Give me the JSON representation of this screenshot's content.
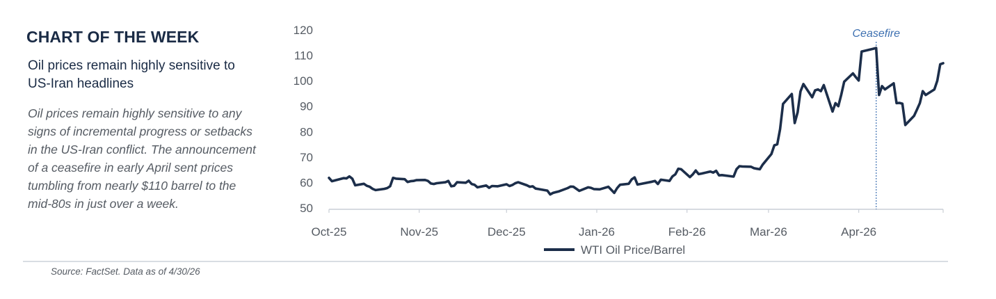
{
  "header": {
    "title": "CHART OF THE WEEK",
    "subtitle": "Oil prices remain highly sensitive to US-Iran headlines"
  },
  "body_text": "Oil prices remain highly sensitive to any signs of incremental progress or setbacks in the US-Iran conflict. The announcement of a ceasefire in early April sent prices tumbling from nearly $110 barrel to the mid-80s in just over a week.",
  "footer": {
    "source": "Source: FactSet. Data as of 4/30/26"
  },
  "colors": {
    "line": "#1c2e4a",
    "heading": "#1a2b45",
    "annotation": "#3c6fb0"
  },
  "chart_data": {
    "type": "line",
    "title": "",
    "xlabel": "",
    "ylabel": "",
    "x_tick_labels": [
      "Oct-25",
      "Nov-25",
      "Dec-25",
      "Jan-26",
      "Feb-26",
      "Mar-26",
      "Apr-26"
    ],
    "x_tick_dates": [
      "2025-10-01",
      "2025-11-01",
      "2025-12-01",
      "2026-01-01",
      "2026-02-01",
      "2026-03-01",
      "2026-04-01"
    ],
    "x_range": [
      "2025-10-01",
      "2026-04-30"
    ],
    "ylim": [
      50,
      120
    ],
    "y_ticks": [
      50,
      60,
      70,
      80,
      90,
      100,
      110,
      120
    ],
    "grid": false,
    "legend_position": "bottom",
    "annotations": [
      {
        "text": "Ceasefire",
        "x": "2026-04-07",
        "style": "dashed vertical line"
      }
    ],
    "series": [
      {
        "name": "WTI Oil Price/Barrel",
        "points": [
          [
            "2025-10-01",
            61.8
          ],
          [
            "2025-10-02",
            60.5
          ],
          [
            "2025-10-03",
            60.8
          ],
          [
            "2025-10-06",
            61.7
          ],
          [
            "2025-10-07",
            61.6
          ],
          [
            "2025-10-08",
            62.4
          ],
          [
            "2025-10-09",
            61.5
          ],
          [
            "2025-10-10",
            58.9
          ],
          [
            "2025-10-13",
            59.5
          ],
          [
            "2025-10-14",
            58.7
          ],
          [
            "2025-10-15",
            58.3
          ],
          [
            "2025-10-16",
            57.5
          ],
          [
            "2025-10-17",
            57.0
          ],
          [
            "2025-10-20",
            57.5
          ],
          [
            "2025-10-21",
            57.8
          ],
          [
            "2025-10-22",
            58.5
          ],
          [
            "2025-10-23",
            61.8
          ],
          [
            "2025-10-24",
            61.5
          ],
          [
            "2025-10-27",
            61.3
          ],
          [
            "2025-10-28",
            60.2
          ],
          [
            "2025-10-29",
            60.5
          ],
          [
            "2025-10-30",
            60.6
          ],
          [
            "2025-10-31",
            60.9
          ],
          [
            "2025-11-03",
            61.0
          ],
          [
            "2025-11-04",
            60.6
          ],
          [
            "2025-11-05",
            59.6
          ],
          [
            "2025-11-06",
            59.4
          ],
          [
            "2025-11-07",
            59.7
          ],
          [
            "2025-11-10",
            60.1
          ],
          [
            "2025-11-11",
            60.6
          ],
          [
            "2025-11-12",
            58.5
          ],
          [
            "2025-11-13",
            58.7
          ],
          [
            "2025-11-14",
            60.1
          ],
          [
            "2025-11-17",
            59.9
          ],
          [
            "2025-11-18",
            60.7
          ],
          [
            "2025-11-19",
            59.4
          ],
          [
            "2025-11-20",
            59.1
          ],
          [
            "2025-11-21",
            58.1
          ],
          [
            "2025-11-24",
            58.8
          ],
          [
            "2025-11-25",
            57.9
          ],
          [
            "2025-11-26",
            58.6
          ],
          [
            "2025-11-28",
            58.5
          ],
          [
            "2025-12-01",
            59.3
          ],
          [
            "2025-12-02",
            58.6
          ],
          [
            "2025-12-03",
            59.0
          ],
          [
            "2025-12-04",
            59.7
          ],
          [
            "2025-12-05",
            60.1
          ],
          [
            "2025-12-08",
            58.9
          ],
          [
            "2025-12-09",
            58.3
          ],
          [
            "2025-12-10",
            58.5
          ],
          [
            "2025-12-11",
            57.6
          ],
          [
            "2025-12-12",
            57.4
          ],
          [
            "2025-12-15",
            56.8
          ],
          [
            "2025-12-16",
            55.3
          ],
          [
            "2025-12-17",
            55.9
          ],
          [
            "2025-12-18",
            56.2
          ],
          [
            "2025-12-19",
            56.5
          ],
          [
            "2025-12-22",
            57.8
          ],
          [
            "2025-12-23",
            58.4
          ],
          [
            "2025-12-24",
            58.3
          ],
          [
            "2025-12-26",
            56.7
          ],
          [
            "2025-12-29",
            58.1
          ],
          [
            "2025-12-30",
            57.9
          ],
          [
            "2025-12-31",
            57.4
          ],
          [
            "2026-01-02",
            57.3
          ],
          [
            "2026-01-05",
            58.3
          ],
          [
            "2026-01-06",
            57.1
          ],
          [
            "2026-01-07",
            55.9
          ],
          [
            "2026-01-08",
            57.8
          ],
          [
            "2026-01-09",
            59.1
          ],
          [
            "2026-01-12",
            59.5
          ],
          [
            "2026-01-13",
            61.2
          ],
          [
            "2026-01-14",
            62.0
          ],
          [
            "2026-01-15",
            59.2
          ],
          [
            "2026-01-16",
            59.4
          ],
          [
            "2026-01-20",
            60.3
          ],
          [
            "2026-01-21",
            60.6
          ],
          [
            "2026-01-22",
            59.4
          ],
          [
            "2026-01-23",
            61.1
          ],
          [
            "2026-01-26",
            60.6
          ],
          [
            "2026-01-27",
            62.4
          ],
          [
            "2026-01-28",
            63.2
          ],
          [
            "2026-01-29",
            65.4
          ],
          [
            "2026-01-30",
            65.2
          ],
          [
            "2026-02-02",
            62.1
          ],
          [
            "2026-02-03",
            63.2
          ],
          [
            "2026-02-04",
            64.7
          ],
          [
            "2026-02-05",
            63.3
          ],
          [
            "2026-02-06",
            63.5
          ],
          [
            "2026-02-09",
            64.3
          ],
          [
            "2026-02-10",
            63.9
          ],
          [
            "2026-02-11",
            64.6
          ],
          [
            "2026-02-12",
            62.8
          ],
          [
            "2026-02-13",
            62.9
          ],
          [
            "2026-02-17",
            62.3
          ],
          [
            "2026-02-18",
            65.2
          ],
          [
            "2026-02-19",
            66.4
          ],
          [
            "2026-02-20",
            66.3
          ],
          [
            "2026-02-23",
            66.2
          ],
          [
            "2026-02-24",
            65.6
          ],
          [
            "2026-02-25",
            65.4
          ],
          [
            "2026-02-26",
            65.2
          ],
          [
            "2026-02-27",
            67.0
          ],
          [
            "2026-03-02",
            71.2
          ],
          [
            "2026-03-03",
            74.6
          ],
          [
            "2026-03-04",
            75.0
          ],
          [
            "2026-03-05",
            81.0
          ],
          [
            "2026-03-06",
            90.9
          ],
          [
            "2026-03-09",
            94.8
          ],
          [
            "2026-03-10",
            83.4
          ],
          [
            "2026-03-11",
            87.6
          ],
          [
            "2026-03-12",
            95.8
          ],
          [
            "2026-03-13",
            98.7
          ],
          [
            "2026-03-16",
            93.5
          ],
          [
            "2026-03-17",
            96.2
          ],
          [
            "2026-03-18",
            96.6
          ],
          [
            "2026-03-19",
            95.9
          ],
          [
            "2026-03-20",
            98.3
          ],
          [
            "2026-03-23",
            87.9
          ],
          [
            "2026-03-24",
            91.2
          ],
          [
            "2026-03-25",
            90.0
          ],
          [
            "2026-03-26",
            94.5
          ],
          [
            "2026-03-27",
            99.6
          ],
          [
            "2026-03-30",
            102.9
          ],
          [
            "2026-03-31",
            101.4
          ],
          [
            "2026-04-01",
            100.1
          ],
          [
            "2026-04-02",
            111.5
          ],
          [
            "2026-04-06",
            112.6
          ],
          [
            "2026-04-07",
            112.9
          ],
          [
            "2026-04-08",
            94.4
          ],
          [
            "2026-04-09",
            97.9
          ],
          [
            "2026-04-10",
            96.6
          ],
          [
            "2026-04-13",
            99.0
          ],
          [
            "2026-04-14",
            91.2
          ],
          [
            "2026-04-15",
            91.3
          ],
          [
            "2026-04-16",
            91.0
          ],
          [
            "2026-04-17",
            82.6
          ],
          [
            "2026-04-20",
            86.2
          ],
          [
            "2026-04-21",
            88.6
          ],
          [
            "2026-04-22",
            91.2
          ],
          [
            "2026-04-23",
            95.9
          ],
          [
            "2026-04-24",
            94.4
          ],
          [
            "2026-04-27",
            96.6
          ],
          [
            "2026-04-28",
            100.0
          ],
          [
            "2026-04-29",
            106.5
          ],
          [
            "2026-04-30",
            106.9
          ]
        ]
      }
    ]
  }
}
